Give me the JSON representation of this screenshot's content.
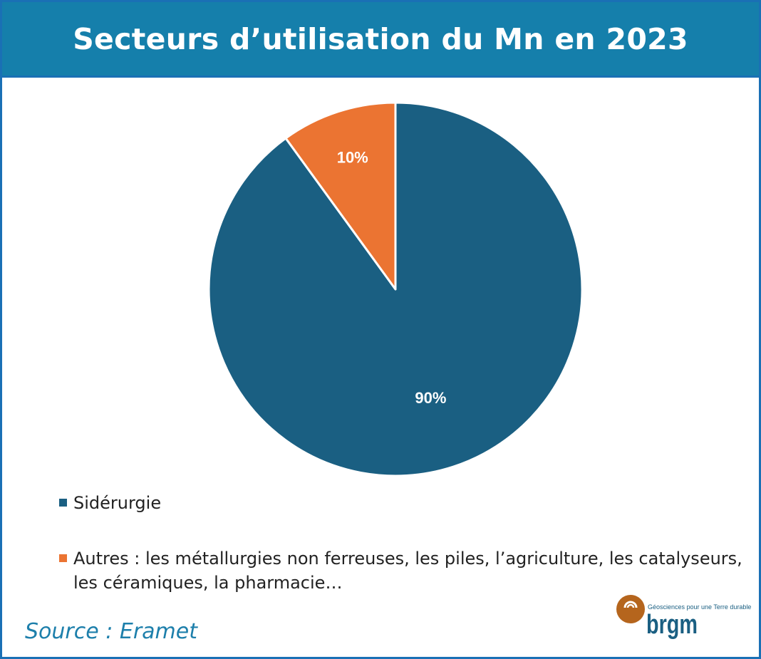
{
  "chart_data": {
    "type": "pie",
    "title": "Secteurs d’utilisation du Mn en 2023",
    "slices": [
      {
        "label": "Sidérurgie",
        "value": 90,
        "data_label": "90%",
        "color": "#1a5f82"
      },
      {
        "label": "Autres : les métallurgies non ferreuses, les piles, l’agriculture, les catalyseurs, les céramiques, la pharmacie…",
        "value": 10,
        "data_label": "10%",
        "color": "#eb7432"
      }
    ],
    "legend_placement": "bottom"
  },
  "header": {
    "color": "#157fab"
  },
  "source": "Source : Eramet",
  "logo": {
    "name": "brgm",
    "tagline": "Géosciences pour une Terre durable"
  }
}
